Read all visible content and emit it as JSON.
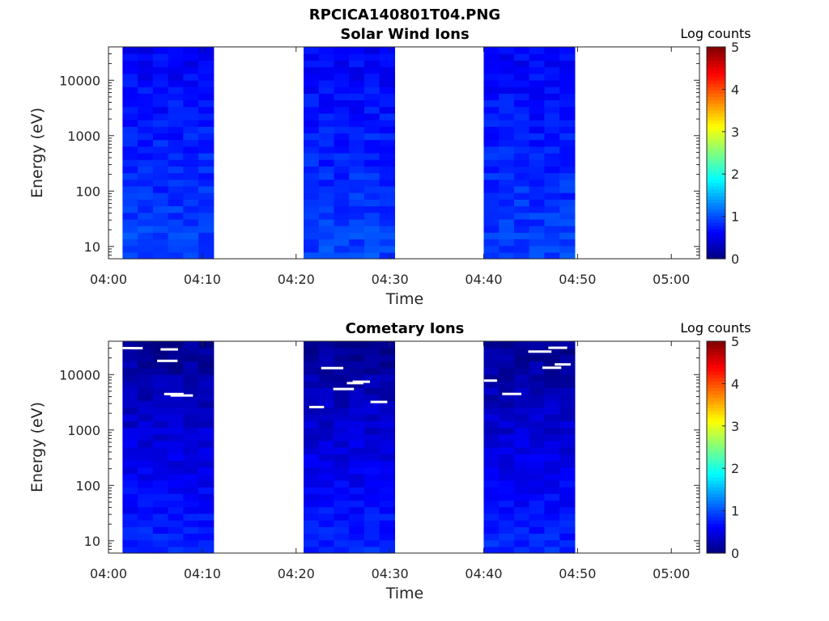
{
  "figure": {
    "title": "RPCICA140801T04.PNG"
  },
  "chart_data": [
    {
      "type": "heatmap",
      "title": "Solar Wind Ions",
      "xlabel": "Time",
      "ylabel": "Energy (eV)",
      "x_ticks": [
        "04:00",
        "04:10",
        "04:20",
        "04:30",
        "04:40",
        "04:50",
        "05:00"
      ],
      "xlim": [
        "04:00",
        "05:03"
      ],
      "y_scale": "log",
      "y_ticks": [
        "10",
        "100",
        "1000",
        "10000"
      ],
      "ylim": [
        6,
        40000
      ],
      "colorbar": {
        "label": "Log counts",
        "range": [
          0,
          5
        ],
        "ticks": [
          "0",
          "1",
          "2",
          "3",
          "4",
          "5"
        ],
        "colormap": "jet"
      },
      "data_intervals": [
        {
          "start": "04:01.5",
          "end": "04:11.2"
        },
        {
          "start": "04:20.8",
          "end": "04:30.5"
        },
        {
          "start": "04:40.0",
          "end": "04:49.7"
        }
      ],
      "value_range_shown": [
        0.4,
        1.1
      ],
      "grid": false
    },
    {
      "type": "heatmap",
      "title": "Cometary Ions",
      "xlabel": "Time",
      "ylabel": "Energy (eV)",
      "x_ticks": [
        "04:00",
        "04:10",
        "04:20",
        "04:30",
        "04:40",
        "04:50",
        "05:00"
      ],
      "xlim": [
        "04:00",
        "05:03"
      ],
      "y_scale": "log",
      "y_ticks": [
        "10",
        "100",
        "1000",
        "10000"
      ],
      "ylim": [
        6,
        40000
      ],
      "colorbar": {
        "label": "Log counts",
        "range": [
          0,
          5
        ],
        "ticks": [
          "0",
          "1",
          "2",
          "3",
          "4",
          "5"
        ],
        "colormap": "jet"
      },
      "data_intervals": [
        {
          "start": "04:01.5",
          "end": "04:11.2"
        },
        {
          "start": "04:20.8",
          "end": "04:30.5"
        },
        {
          "start": "04:40.0",
          "end": "04:49.7"
        }
      ],
      "value_range_shown": [
        0.0,
        0.9
      ],
      "grid": false
    }
  ]
}
